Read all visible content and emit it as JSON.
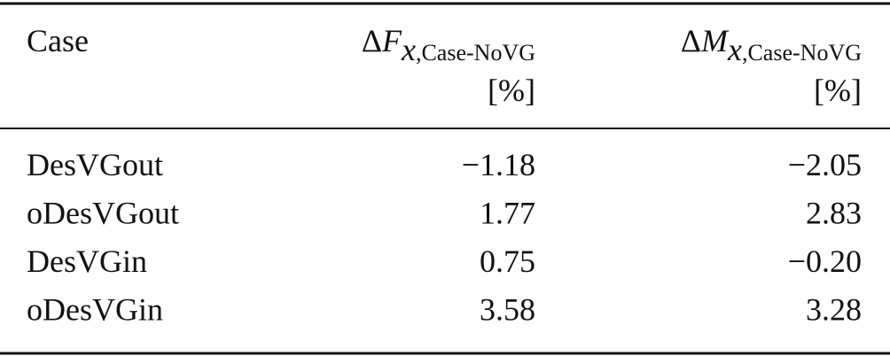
{
  "table": {
    "header": [
      {
        "text": "Case"
      },
      {
        "delta": "Δ",
        "var": "F",
        "sub_var": "x",
        "sub_text": ",Case-NoVG",
        "unit": "[%]"
      },
      {
        "delta": "Δ",
        "var": "M",
        "sub_var": "x",
        "sub_text": ",Case-NoVG",
        "unit": "[%]"
      }
    ],
    "rows": [
      [
        "DesVGout",
        "−1.18",
        "−2.05"
      ],
      [
        "oDesVGout",
        "1.77",
        "2.83"
      ],
      [
        "DesVGin",
        "0.75",
        "−0.20"
      ],
      [
        "oDesVGin",
        "3.58",
        "3.28"
      ]
    ]
  }
}
